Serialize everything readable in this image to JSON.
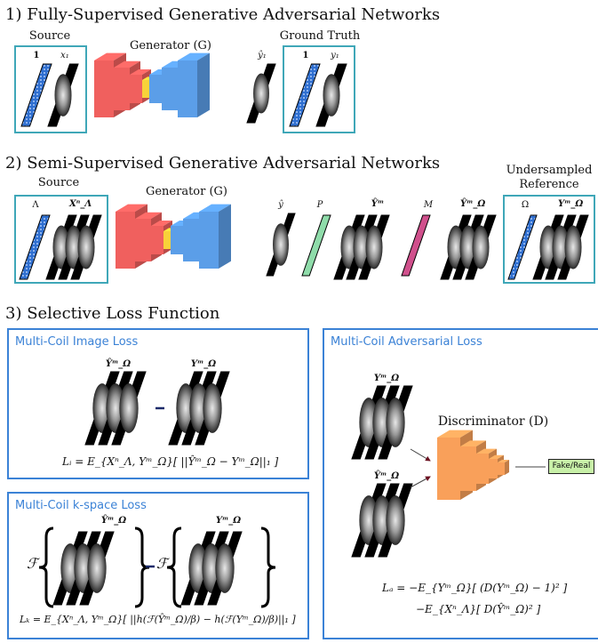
{
  "section1": {
    "title": "1) Fully-Supervised Generative Adversarial Networks",
    "source_label": "Source",
    "generator_label": "Generator (G)",
    "ground_truth_label": "Ground Truth",
    "symbols": {
      "mask_in": "1",
      "x": "x₁",
      "yhat": "ŷ₁",
      "mask_gt": "1",
      "y": "y₁"
    }
  },
  "section2": {
    "title": "2) Semi-Supervised Generative Adversarial Networks",
    "source_label": "Source",
    "generator_label": "Generator (G)",
    "reference_label_line1": "Undersampled",
    "reference_label_line2": "Reference",
    "symbols": {
      "lambda": "Λ",
      "x": "Xⁿ_Λ",
      "yhat": "ŷ",
      "P": "P",
      "Yhat_m": "Ŷᵐ",
      "M": "M",
      "Yhat_omega": "Ŷᵐ_Ω",
      "omega": "Ω",
      "Y_omega": "Yᵐ_Ω"
    }
  },
  "section3": {
    "title": "3) Selective Loss Function",
    "image_loss": {
      "title": "Multi-Coil Image Loss",
      "left_label": "Ŷᵐ_Ω",
      "right_label": "Yᵐ_Ω",
      "formula": "Lᵢ = E_{Xⁿ_Λ, Yᵐ_Ω}[ ||Ŷᵐ_Ω − Yᵐ_Ω||₁ ]"
    },
    "kspace_loss": {
      "title": "Multi-Coil k-space Loss",
      "left_label": "Ŷᵐ_Ω",
      "right_label": "Yᵐ_Ω",
      "F": "ℱ",
      "formula": "Lₖ = E_{Xⁿ_Λ, Yᵐ_Ω}[ ||h(ℱ(Ŷᵐ_Ω)/β) − h(ℱ(Yᵐ_Ω)/β)||₁ ]"
    },
    "adversarial_loss": {
      "title": "Multi-Coil Adversarial Loss",
      "top_label": "Yᵐ_Ω",
      "bottom_label": "Ŷᵐ_Ω",
      "discriminator_label": "Discriminator (D)",
      "output_label": "Fake/Real",
      "formula_line1": "Lₐ = −E_{Yᵐ_Ω}[ (D(Yᵐ_Ω) − 1)² ]",
      "formula_line2": "−E_{Xⁿ_Λ}[ D(Ŷᵐ_Ω)² ]"
    }
  },
  "colors": {
    "teal_frame": "#3fa7b8",
    "blue_frame": "#3b82d6",
    "generator_red": "#f0605e",
    "generator_yellow": "#f8d23a",
    "generator_blue": "#5b9ee8",
    "discriminator_orange": "#f9a05a",
    "P_green": "#8fdcaa",
    "M_pink": "#d0508c",
    "mask_blue": "#2f6fd0",
    "fakereal_green": "#c8f0a8"
  }
}
